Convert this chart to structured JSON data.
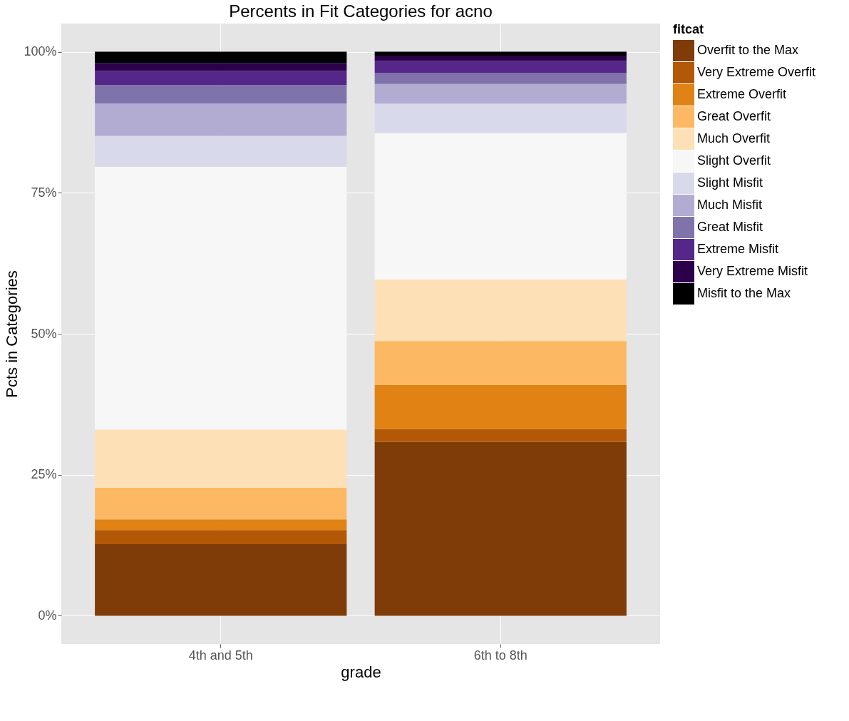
{
  "chart_data": {
    "type": "bar",
    "stacked": true,
    "title": "Percents in Fit Categories for acno",
    "xlabel": "grade",
    "ylabel": "Pcts in Categories",
    "legend_title": "fitcat",
    "legend": "right",
    "grid": true,
    "categories": [
      "4th and 5th",
      "6th to 8th"
    ],
    "ylim": [
      -5,
      105
    ],
    "yticks": [
      {
        "value": 0,
        "label": "0%"
      },
      {
        "value": 25,
        "label": "25%"
      },
      {
        "value": 50,
        "label": "50%"
      },
      {
        "value": 75,
        "label": "75%"
      },
      {
        "value": 100,
        "label": "100%"
      }
    ],
    "series": [
      {
        "name": "Overfit to the Max",
        "color": "#7f3b08",
        "values": [
          12.7,
          30.8
        ]
      },
      {
        "name": "Very Extreme Overfit",
        "color": "#b35806",
        "values": [
          2.5,
          2.3
        ]
      },
      {
        "name": "Extreme Overfit",
        "color": "#e08214",
        "values": [
          1.9,
          7.8
        ]
      },
      {
        "name": "Great Overfit",
        "color": "#fdb863",
        "values": [
          5.6,
          7.8
        ]
      },
      {
        "name": "Much Overfit",
        "color": "#fee0b6",
        "values": [
          10.3,
          10.9
        ]
      },
      {
        "name": "Slight Overfit",
        "color": "#f7f7f7",
        "values": [
          46.6,
          26.0
        ]
      },
      {
        "name": "Slight Misfit",
        "color": "#d8daeb",
        "values": [
          5.5,
          5.2
        ]
      },
      {
        "name": "Much Misfit",
        "color": "#b2abd2",
        "values": [
          5.7,
          3.5
        ]
      },
      {
        "name": "Great Misfit",
        "color": "#8073ac",
        "values": [
          3.3,
          1.9
        ]
      },
      {
        "name": "Extreme Misfit",
        "color": "#542788",
        "values": [
          2.5,
          2.2
        ]
      },
      {
        "name": "Very Extreme Misfit",
        "color": "#2d004b",
        "values": [
          1.4,
          0.9
        ]
      },
      {
        "name": "Misfit to the Max",
        "color": "#000000",
        "values": [
          2.0,
          0.7
        ]
      }
    ]
  }
}
